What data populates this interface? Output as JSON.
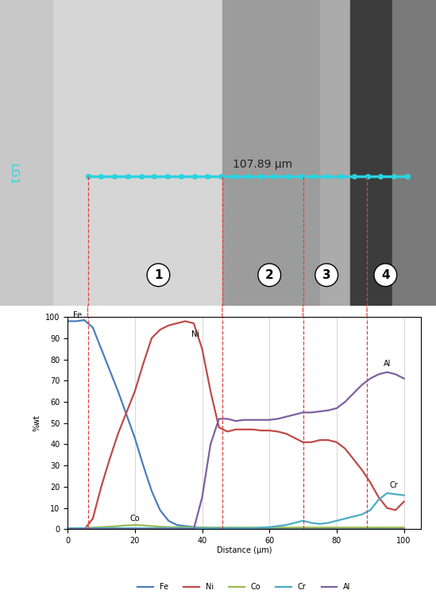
{
  "chart_data": {
    "type": "line",
    "x_label": "Distance (µm)",
    "y_label": "%wt",
    "x": [
      0,
      2.5,
      5,
      7.5,
      10,
      12.5,
      15,
      17.5,
      20,
      22.5,
      25,
      27.5,
      30,
      32.5,
      35,
      37.5,
      40,
      42.5,
      45,
      47.5,
      50,
      52.5,
      55,
      57.5,
      60,
      62.5,
      65,
      67.5,
      70,
      72.5,
      75,
      77.5,
      80,
      82.5,
      85,
      87.5,
      90,
      92.5,
      95,
      97.5,
      100
    ],
    "series": [
      {
        "name": "Fe",
        "color": "#4a7ebb",
        "values": [
          98,
          98,
          98.5,
          95,
          85,
          75,
          65,
          54,
          43,
          30,
          18,
          9,
          4,
          2,
          1.5,
          1,
          0.8,
          0.6,
          0.5,
          0.5,
          0.5,
          0.5,
          0.5,
          0.5,
          0.5,
          0.5,
          0.5,
          0.5,
          0.5,
          0.5,
          0.5,
          0.5,
          0.5,
          0.5,
          0.5,
          0.5,
          0.5,
          0.5,
          0.5,
          0.5,
          0.5
        ]
      },
      {
        "name": "Ni",
        "color": "#be4b48",
        "values": [
          0,
          0,
          0,
          5,
          20,
          33,
          45,
          55,
          65,
          78,
          90,
          94,
          96,
          97,
          98,
          97,
          85,
          65,
          48,
          46,
          47,
          47,
          47,
          46.5,
          46.5,
          46,
          45,
          43,
          41,
          41,
          42,
          42,
          41,
          38,
          33,
          28,
          22,
          15,
          10,
          9,
          13
        ]
      },
      {
        "name": "Co",
        "color": "#98b954",
        "values": [
          0.5,
          0.5,
          0.5,
          0.8,
          1,
          1.2,
          1.5,
          1.8,
          2,
          1.8,
          1.5,
          1.2,
          1,
          1,
          1,
          0.8,
          0.8,
          0.8,
          0.8,
          0.8,
          0.8,
          0.8,
          0.8,
          0.8,
          0.8,
          0.8,
          0.8,
          0.8,
          0.8,
          0.8,
          0.8,
          0.8,
          0.8,
          0.8,
          0.8,
          0.8,
          0.8,
          0.8,
          0.8,
          0.8,
          0.8
        ]
      },
      {
        "name": "Cr",
        "color": "#4bacc6",
        "values": [
          0.5,
          0.5,
          0.5,
          0.5,
          0.5,
          0.5,
          0.5,
          0.5,
          0.5,
          0.5,
          0.5,
          0.5,
          0.5,
          0.5,
          0.5,
          0.5,
          0.5,
          0.5,
          0.5,
          0.5,
          0.5,
          0.5,
          0.5,
          0.8,
          1,
          1.5,
          2,
          3,
          4,
          3,
          2.5,
          3,
          4,
          5,
          6,
          7,
          9,
          14,
          17,
          16.5,
          16
        ]
      },
      {
        "name": "Al",
        "color": "#7d60a0",
        "values": [
          0,
          0,
          0,
          0,
          0,
          0,
          0,
          0,
          0,
          0,
          0,
          0,
          0,
          0,
          0,
          0,
          15,
          40,
          52,
          52,
          51,
          51.5,
          51.5,
          51.5,
          51.5,
          52,
          53,
          54,
          55,
          55,
          55.5,
          56,
          57,
          60,
          64,
          68,
          71,
          73,
          74,
          73,
          71
        ]
      }
    ],
    "annotations": [
      {
        "text": "Fe",
        "x": 3,
        "y": 99
      },
      {
        "text": "Ni",
        "x": 38,
        "y": 90
      },
      {
        "text": "Co",
        "x": 20,
        "y": 3
      },
      {
        "text": "Al",
        "x": 95,
        "y": 76
      },
      {
        "text": "Cr",
        "x": 97,
        "y": 19
      }
    ],
    "boundaries": [
      6,
      46,
      70,
      89
    ],
    "xlim": [
      0,
      105
    ],
    "xticks": [
      0,
      20,
      40,
      60,
      80,
      100
    ],
    "ylim": [
      0,
      100
    ],
    "yticks": [
      0,
      10,
      20,
      30,
      40,
      50,
      60,
      70,
      80,
      90,
      100
    ],
    "grid": "x",
    "legend": "lower center"
  },
  "micrograph": {
    "scale_label": "107.89 µm",
    "line_label": "LG1",
    "regions": [
      "1",
      "2",
      "3",
      "4"
    ]
  }
}
